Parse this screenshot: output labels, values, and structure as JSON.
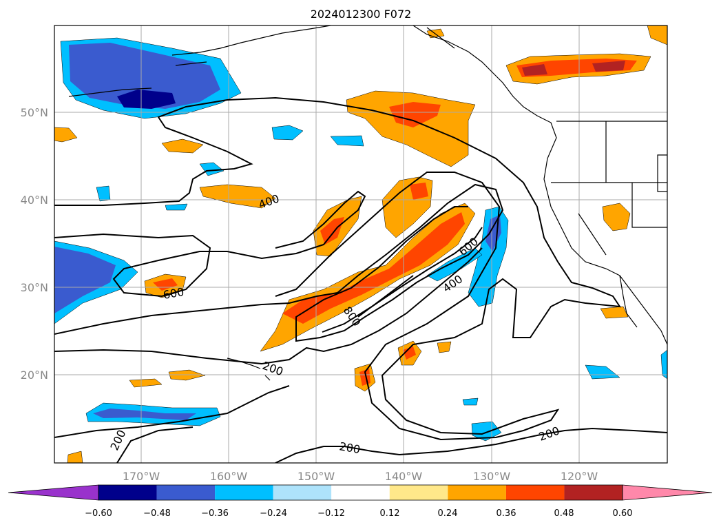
{
  "title": "2024012300 F072",
  "map": {
    "lat_labels": [
      "50°N",
      "40°N",
      "30°N",
      "20°N"
    ],
    "lon_labels": [
      "170°W",
      "160°W",
      "150°W",
      "140°W",
      "130°W",
      "120°W"
    ],
    "contour_labels": [
      "400",
      "600",
      "600",
      "400",
      "800",
      "200",
      "200",
      "200",
      "200"
    ],
    "grid": true,
    "coastline_color": "#000000",
    "contour_color": "#000000"
  },
  "colorbar": {
    "ticks": [
      "−0.60",
      "−0.48",
      "−0.36",
      "−0.24",
      "−0.12",
      "0.12",
      "0.24",
      "0.36",
      "0.48",
      "0.60"
    ],
    "colors": [
      "#9932cc",
      "#00008b",
      "#3a5bcf",
      "#00bfff",
      "#aee3fb",
      "#ffffff",
      "#ffe88a",
      "#ffa500",
      "#ff4500",
      "#b22222",
      "#ff88aa"
    ],
    "extend": "both"
  }
}
